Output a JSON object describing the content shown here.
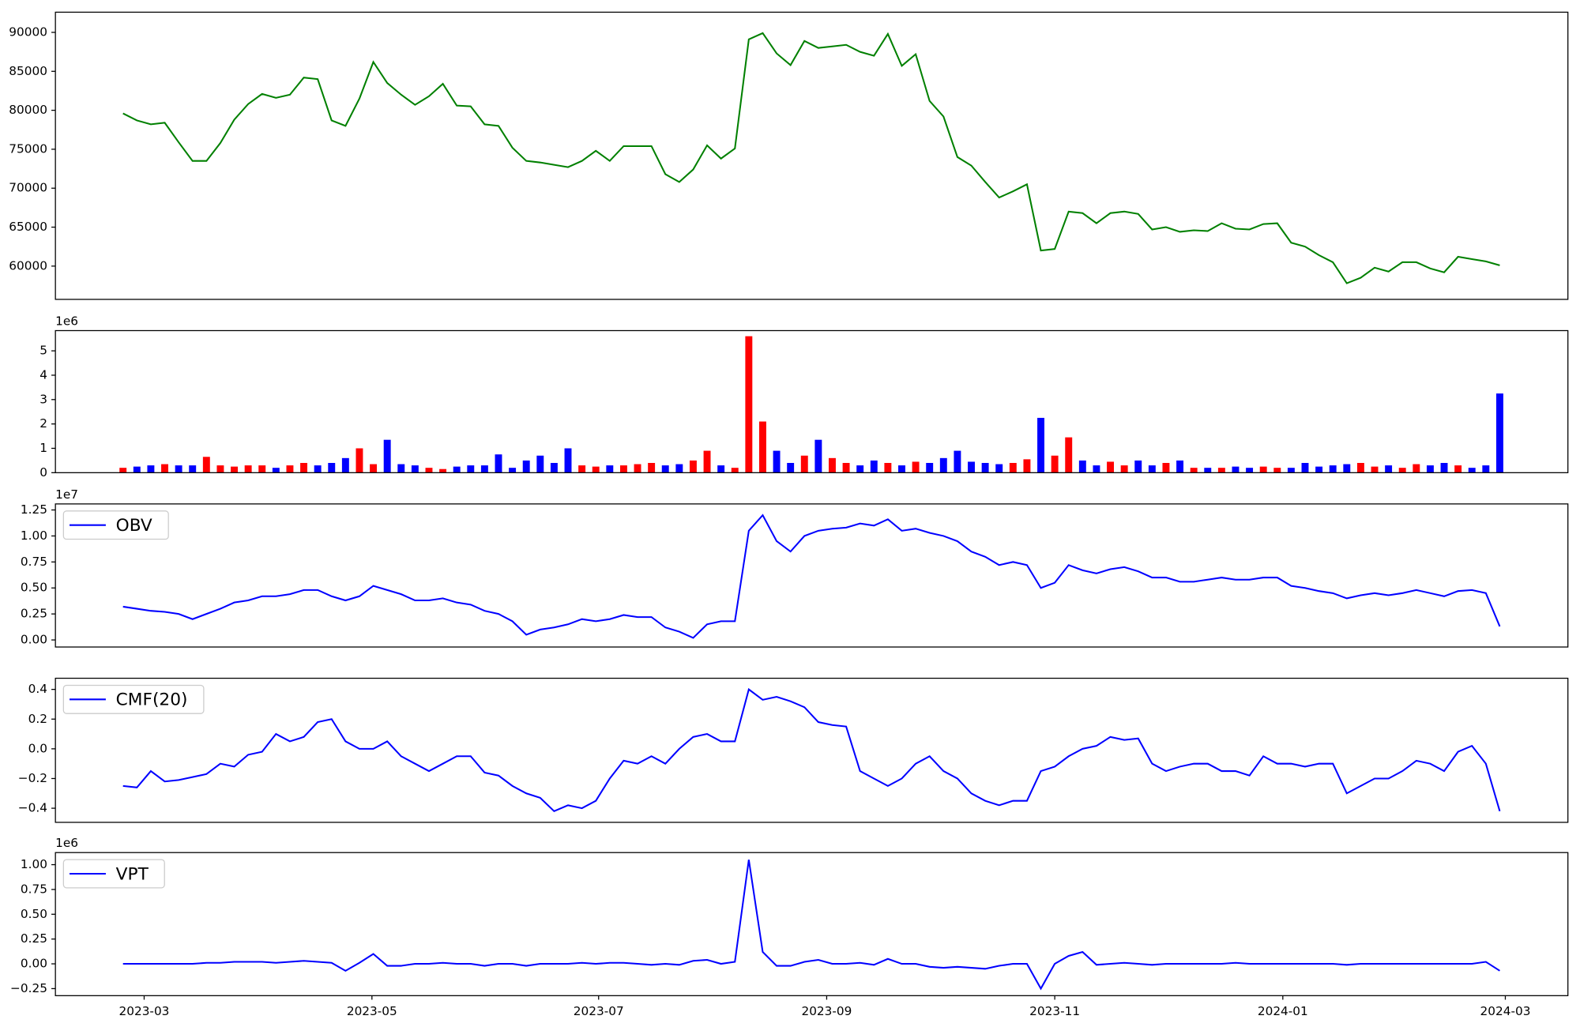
{
  "chart_data": [
    {
      "type": "line",
      "color": "green",
      "xlim": [
        -4.86,
        103.9
      ],
      "ylim": [
        55730,
        92590
      ],
      "yticks": [
        60000,
        65000,
        70000,
        75000,
        80000,
        85000,
        90000
      ],
      "values": [
        79600,
        78700,
        78200,
        78400,
        75900,
        73500,
        73500,
        75800,
        78800,
        80800,
        82100,
        81600,
        82000,
        84200,
        84000,
        78700,
        78000,
        81500,
        86200,
        83500,
        82000,
        80700,
        81800,
        83400,
        80600,
        80500,
        78200,
        78000,
        75200,
        73500,
        73300,
        73000,
        72700,
        73500,
        74800,
        73500,
        75400,
        75400,
        75400,
        71800,
        70800,
        72400,
        75500,
        73800,
        75100,
        89100,
        89900,
        87300,
        85800,
        88900,
        88000,
        88200,
        88400,
        87500,
        87000,
        89800,
        85700,
        87200,
        81200,
        79200,
        74000,
        72900,
        70800,
        68800,
        69600,
        70500,
        62000,
        62200,
        67000,
        66800,
        65500,
        66800,
        67000,
        66700,
        64700,
        65000,
        64400,
        64600,
        64500,
        65500,
        64800,
        64700,
        65400,
        65500,
        63000,
        62500,
        61400,
        60500,
        57800,
        58500,
        59800,
        59300,
        60500,
        60500,
        59700,
        59200,
        61200,
        60900,
        60600,
        60100
      ]
    },
    {
      "type": "bar",
      "up_color": "red",
      "down_color": "blue",
      "offset_label": "1e6",
      "xlim": [
        -4.86,
        103.9
      ],
      "ylim": [
        0,
        5.83
      ],
      "yticks": [
        0,
        1,
        2,
        3,
        4,
        5
      ],
      "values": [
        0.2,
        0.25,
        0.3,
        0.35,
        0.3,
        0.3,
        0.65,
        0.3,
        0.25,
        0.3,
        0.3,
        0.2,
        0.3,
        0.4,
        0.3,
        0.4,
        0.6,
        1.0,
        0.35,
        1.35,
        0.35,
        0.3,
        0.2,
        0.15,
        0.25,
        0.3,
        0.3,
        0.75,
        0.2,
        0.5,
        0.7,
        0.4,
        1.0,
        0.3,
        0.25,
        0.3,
        0.3,
        0.35,
        0.4,
        0.3,
        0.35,
        0.5,
        0.9,
        0.3,
        0.2,
        5.6,
        2.1,
        0.9,
        0.4,
        0.7,
        1.35,
        0.6,
        0.4,
        0.3,
        0.5,
        0.4,
        0.3,
        0.45,
        0.4,
        0.6,
        0.9,
        0.45,
        0.4,
        0.35,
        0.4,
        0.55,
        2.25,
        0.7,
        1.45,
        0.5,
        0.3,
        0.45,
        0.3,
        0.5,
        0.3,
        0.4,
        0.5,
        0.2,
        0.2,
        0.2,
        0.25,
        0.2,
        0.25,
        0.2,
        0.2,
        0.4,
        0.25,
        0.3,
        0.35,
        0.4,
        0.25,
        0.3,
        0.2,
        0.35,
        0.3,
        0.4,
        0.3,
        0.2,
        0.3,
        3.25
      ]
    },
    {
      "type": "line",
      "offset_label": "1e7",
      "xlim": [
        -4.86,
        103.9
      ],
      "ylim": [
        -0.068,
        1.308
      ],
      "yticks": [
        {
          "value": 0,
          "label": "0.00"
        },
        0.25,
        {
          "value": 0.5,
          "label": "0.50"
        },
        0.75,
        {
          "value": 1,
          "label": "1.00"
        },
        1.25
      ],
      "series": [
        {
          "name": "OBV",
          "color": "blue",
          "values": [
            0.32,
            0.3,
            0.28,
            0.27,
            0.25,
            0.2,
            0.25,
            0.3,
            0.36,
            0.38,
            0.42,
            0.42,
            0.44,
            0.48,
            0.48,
            0.42,
            0.38,
            0.42,
            0.52,
            0.48,
            0.44,
            0.38,
            0.38,
            0.4,
            0.36,
            0.34,
            0.28,
            0.25,
            0.18,
            0.05,
            0.1,
            0.12,
            0.15,
            0.2,
            0.18,
            0.2,
            0.24,
            0.22,
            0.22,
            0.12,
            0.08,
            0.02,
            0.15,
            0.18,
            0.18,
            1.05,
            1.2,
            0.95,
            0.85,
            1.0,
            1.05,
            1.07,
            1.08,
            1.12,
            1.1,
            1.16,
            1.05,
            1.07,
            1.03,
            1.0,
            0.95,
            0.85,
            0.8,
            0.72,
            0.75,
            0.72,
            0.5,
            0.55,
            0.72,
            0.67,
            0.64,
            0.68,
            0.7,
            0.66,
            0.6,
            0.6,
            0.56,
            0.56,
            0.58,
            0.6,
            0.58,
            0.58,
            0.6,
            0.6,
            0.52,
            0.5,
            0.47,
            0.45,
            0.4,
            0.43,
            0.45,
            0.43,
            0.45,
            0.48,
            0.45,
            0.42,
            0.47,
            0.48,
            0.45,
            0.13
          ]
        }
      ]
    },
    {
      "type": "line",
      "xlim": [
        -4.86,
        103.9
      ],
      "ylim": [
        -0.495,
        0.475
      ],
      "yticks": [
        {
          "value": -0.4,
          "label": "−0.4"
        },
        {
          "value": -0.2,
          "label": "−0.2"
        },
        {
          "value": 0,
          "label": "0.0"
        },
        0.2,
        0.4
      ],
      "series": [
        {
          "name": "CMF(20)",
          "color": "blue",
          "values": [
            -0.25,
            -0.26,
            -0.15,
            -0.22,
            -0.21,
            -0.19,
            -0.17,
            -0.1,
            -0.12,
            -0.04,
            -0.02,
            0.1,
            0.05,
            0.08,
            0.18,
            0.2,
            0.05,
            0.0,
            0.0,
            0.05,
            -0.05,
            -0.1,
            -0.15,
            -0.1,
            -0.05,
            -0.05,
            -0.16,
            -0.18,
            -0.25,
            -0.3,
            -0.33,
            -0.42,
            -0.38,
            -0.4,
            -0.35,
            -0.2,
            -0.08,
            -0.1,
            -0.05,
            -0.1,
            0.0,
            0.08,
            0.1,
            0.05,
            0.05,
            0.4,
            0.33,
            0.35,
            0.32,
            0.28,
            0.18,
            0.16,
            0.15,
            -0.15,
            -0.2,
            -0.25,
            -0.2,
            -0.1,
            -0.05,
            -0.15,
            -0.2,
            -0.3,
            -0.35,
            -0.38,
            -0.35,
            -0.35,
            -0.15,
            -0.12,
            -0.05,
            0.0,
            0.02,
            0.08,
            0.06,
            0.07,
            -0.1,
            -0.15,
            -0.12,
            -0.1,
            -0.1,
            -0.15,
            -0.15,
            -0.18,
            -0.05,
            -0.1,
            -0.1,
            -0.12,
            -0.1,
            -0.1,
            -0.3,
            -0.25,
            -0.2,
            -0.2,
            -0.15,
            -0.08,
            -0.1,
            -0.15,
            -0.02,
            0.02,
            -0.1,
            -0.42
          ]
        }
      ]
    },
    {
      "type": "line",
      "offset_label": "1e6",
      "xlim": [
        -4.86,
        103.9
      ],
      "ylim": [
        -0.321,
        1.122
      ],
      "yticks": [
        {
          "value": -0.25,
          "label": "−0.25"
        },
        {
          "value": 0,
          "label": "0.00"
        },
        0.25,
        {
          "value": 0.5,
          "label": "0.50"
        },
        0.75,
        {
          "value": 1,
          "label": "1.00"
        }
      ],
      "xticks": [
        {
          "value": 1.52,
          "label": "2023-03"
        },
        {
          "value": 17.9,
          "label": "2023-05"
        },
        {
          "value": 34.2,
          "label": "2023-07"
        },
        {
          "value": 50.6,
          "label": "2023-09"
        },
        {
          "value": 67.0,
          "label": "2023-11"
        },
        {
          "value": 83.4,
          "label": "2024-01"
        },
        {
          "value": 99.4,
          "label": "2024-03"
        }
      ],
      "series": [
        {
          "name": "VPT",
          "color": "blue",
          "values": [
            0,
            0,
            0,
            0,
            0,
            0,
            0.01,
            0.01,
            0.02,
            0.02,
            0.02,
            0.01,
            0.02,
            0.03,
            0.02,
            0.01,
            -0.07,
            0.01,
            0.1,
            -0.02,
            -0.02,
            0,
            0,
            0.01,
            0,
            0,
            -0.02,
            0,
            0,
            -0.02,
            0,
            0,
            0,
            0.01,
            0,
            0.01,
            0.01,
            0,
            -0.01,
            0,
            -0.01,
            0.03,
            0.04,
            0,
            0.02,
            1.05,
            0.12,
            -0.02,
            -0.02,
            0.02,
            0.04,
            0,
            0,
            0.01,
            -0.01,
            0.05,
            0,
            0,
            -0.03,
            -0.04,
            -0.03,
            -0.04,
            -0.05,
            -0.02,
            0,
            0,
            -0.25,
            0,
            0.08,
            0.12,
            -0.01,
            0,
            0.01,
            0,
            -0.01,
            0,
            0,
            0,
            0,
            0,
            0.01,
            0,
            0,
            0,
            0,
            0,
            0,
            0,
            -0.01,
            0,
            0,
            0,
            0,
            0,
            0,
            0,
            0,
            0,
            0.02,
            -0.07
          ]
        }
      ]
    }
  ]
}
